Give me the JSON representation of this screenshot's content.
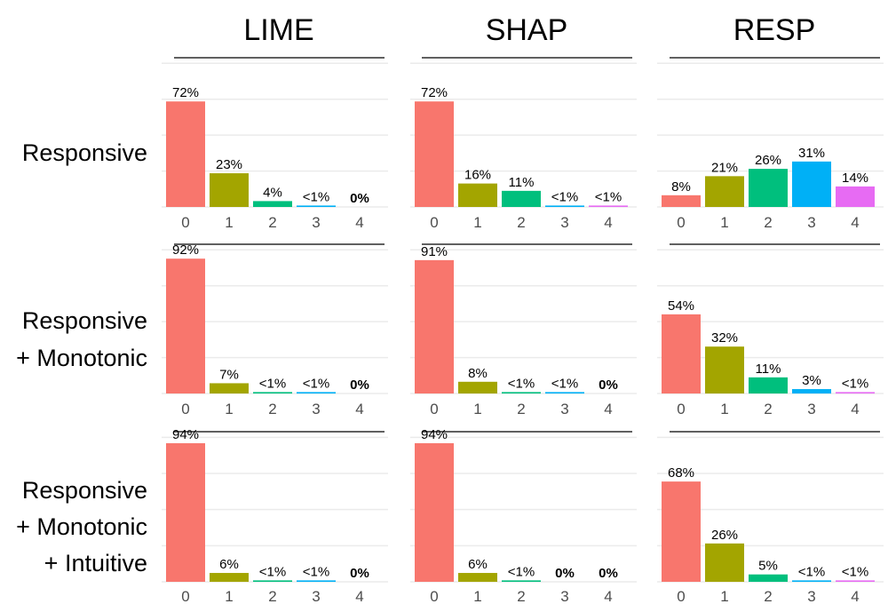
{
  "colors": [
    "#F8766D",
    "#A3A500",
    "#00BF7D",
    "#00B0F6",
    "#E76BF3"
  ],
  "chart_data": {
    "type": "bar",
    "columns": [
      "LIME",
      "SHAP",
      "RESP"
    ],
    "rows": [
      {
        "label_lines": [
          "Responsive"
        ]
      },
      {
        "label_lines": [
          "Responsive",
          "+ Monotonic"
        ]
      },
      {
        "label_lines": [
          "Responsive",
          "+ Monotonic",
          "+ Intuitive"
        ]
      }
    ],
    "categories": [
      "0",
      "1",
      "2",
      "3",
      "4"
    ],
    "ylim": [
      0,
      100
    ],
    "panels": [
      [
        {
          "values": [
            72,
            23,
            4,
            0.5,
            0
          ],
          "labels": [
            "72%",
            "23%",
            "4%",
            "<1%",
            "0%"
          ]
        },
        {
          "values": [
            72,
            16,
            11,
            0.5,
            0.5
          ],
          "labels": [
            "72%",
            "16%",
            "11%",
            "<1%",
            "<1%"
          ]
        },
        {
          "values": [
            8,
            21,
            26,
            31,
            14
          ],
          "labels": [
            "8%",
            "21%",
            "26%",
            "31%",
            "14%"
          ]
        }
      ],
      [
        {
          "values": [
            92,
            7,
            0.5,
            0.5,
            0
          ],
          "labels": [
            "92%",
            "7%",
            "<1%",
            "<1%",
            "0%"
          ]
        },
        {
          "values": [
            91,
            8,
            0.5,
            0.5,
            0
          ],
          "labels": [
            "91%",
            "8%",
            "<1%",
            "<1%",
            "0%"
          ]
        },
        {
          "values": [
            54,
            32,
            11,
            3,
            0.5
          ],
          "labels": [
            "54%",
            "32%",
            "11%",
            "3%",
            "<1%"
          ]
        }
      ],
      [
        {
          "values": [
            94,
            6,
            0.5,
            0.5,
            0
          ],
          "labels": [
            "94%",
            "6%",
            "<1%",
            "<1%",
            "0%"
          ]
        },
        {
          "values": [
            94,
            6,
            0.5,
            0,
            0
          ],
          "labels": [
            "94%",
            "6%",
            "<1%",
            "0%",
            "0%"
          ]
        },
        {
          "values": [
            68,
            26,
            5,
            0.5,
            0.5
          ],
          "labels": [
            "68%",
            "26%",
            "5%",
            "<1%",
            "<1%"
          ]
        }
      ]
    ]
  }
}
